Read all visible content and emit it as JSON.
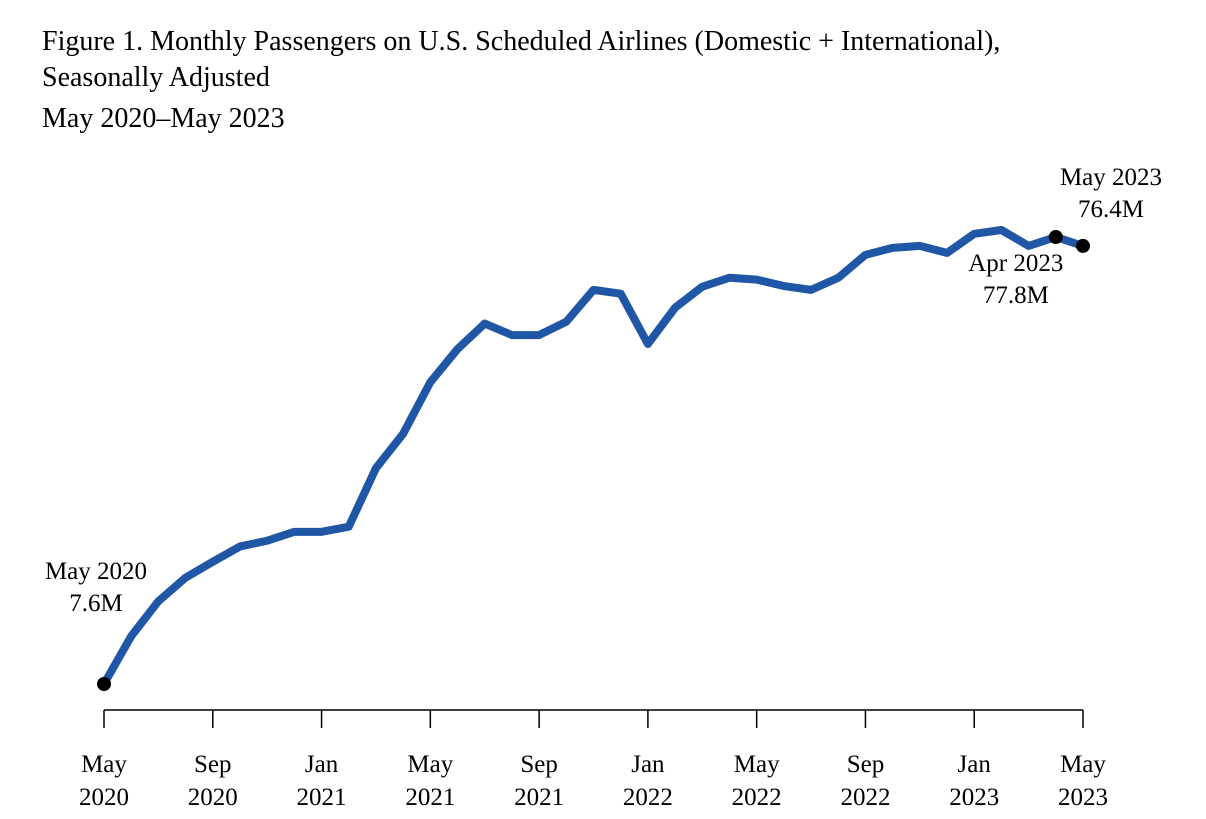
{
  "chart_data": {
    "type": "line",
    "title": "Figure 1. Monthly Passengers on U.S. Scheduled Airlines (Domestic + International),",
    "subtitle": "Seasonally Adjusted",
    "subtitle2": "May 2020–May 2023",
    "categories": [
      "May 2020",
      null,
      null,
      null,
      "Sep 2020",
      null,
      null,
      null,
      "Jan 2021",
      null,
      null,
      null,
      "May 2021",
      null,
      null,
      null,
      "Sep 2021",
      null,
      null,
      null,
      "Jan 2022",
      null,
      null,
      null,
      "May 2022",
      null,
      null,
      null,
      "Sep 2022",
      null,
      null,
      null,
      "Jan 2023",
      null,
      null,
      null,
      "May 2023"
    ],
    "series": [
      {
        "color": "#1f56a5",
        "values": [
          7.6,
          15.1,
          20.6,
          24.3,
          26.8,
          29.2,
          30.1,
          31.5,
          31.5,
          32.3,
          41.5,
          46.9,
          55.0,
          60.2,
          64.2,
          62.4,
          62.4,
          64.5,
          69.5,
          68.9,
          61.0,
          66.7,
          70.0,
          71.4,
          71.1,
          70.1,
          69.5,
          71.4,
          75.0,
          76.1,
          76.4,
          75.3,
          78.3,
          78.9,
          76.4,
          77.8,
          76.4
        ],
        "point_labels": [
          "May 2020",
          null,
          null,
          null,
          null,
          null,
          null,
          null,
          null,
          null,
          null,
          null,
          null,
          null,
          null,
          null,
          null,
          null,
          null,
          null,
          null,
          null,
          null,
          null,
          null,
          null,
          null,
          null,
          null,
          null,
          null,
          null,
          null,
          null,
          null,
          "Apr 2023",
          "May 2023"
        ],
        "value_labels": [
          "7.6M",
          null,
          null,
          null,
          null,
          null,
          null,
          null,
          null,
          null,
          null,
          null,
          null,
          null,
          null,
          null,
          null,
          null,
          null,
          null,
          null,
          null,
          null,
          null,
          null,
          null,
          null,
          null,
          null,
          null,
          null,
          null,
          null,
          null,
          null,
          "77.8M",
          "76.4M"
        ]
      }
    ]
  }
}
